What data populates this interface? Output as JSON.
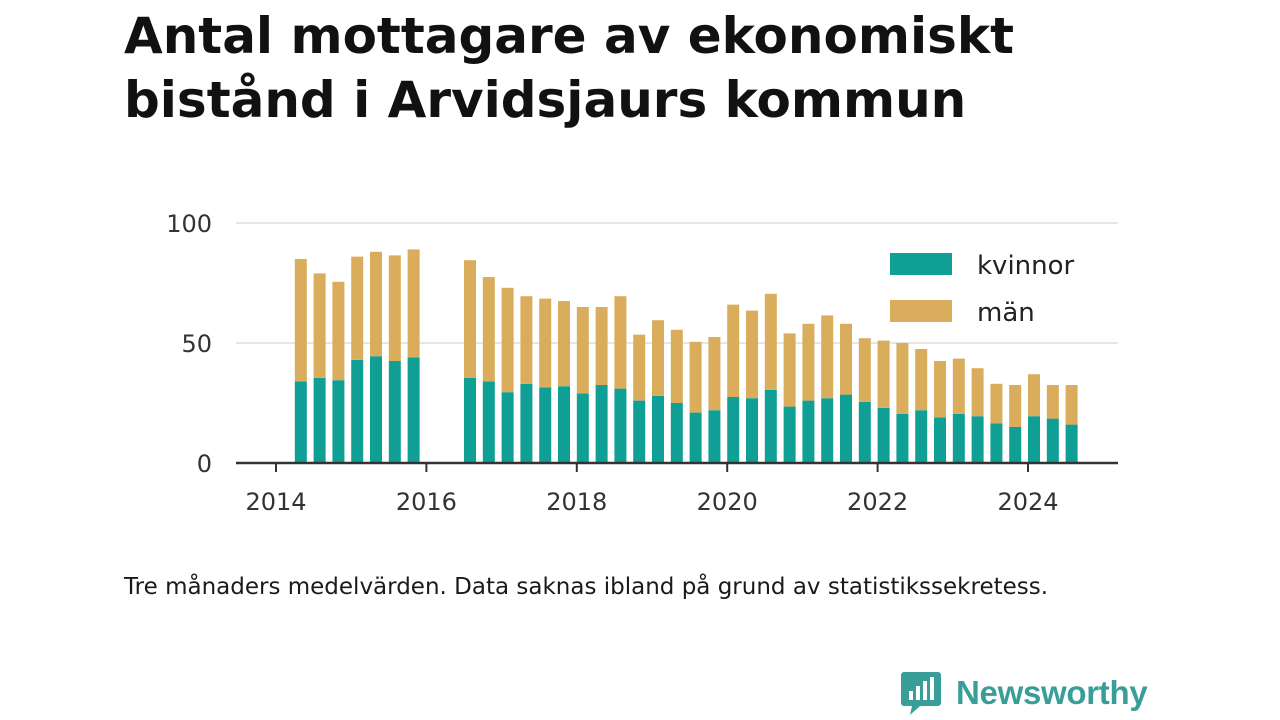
{
  "chart_data": {
    "type": "bar",
    "stacked": true,
    "title": "Antal mottagare av ekonomiskt bistånd i Arvidsjaurs kommun",
    "note": "Tre månaders medelvärden. Data saknas ibland på grund av statistikssekretess.",
    "x_ticks": [
      "2014",
      "2016",
      "2018",
      "2020",
      "2022",
      "2024"
    ],
    "y_ticks": [
      "0",
      "50",
      "100"
    ],
    "ylim": [
      0,
      100
    ],
    "xlim": [
      2014,
      2025.2
    ],
    "grid": true,
    "legend_position": "top-right",
    "colors": {
      "kvinnor": "#0f9f94",
      "män": "#d9ad5c"
    },
    "x": [
      2014.33,
      2014.58,
      2014.83,
      2015.08,
      2015.33,
      2015.58,
      2015.83,
      2016.58,
      2016.83,
      2017.08,
      2017.33,
      2017.58,
      2017.83,
      2018.08,
      2018.33,
      2018.58,
      2018.83,
      2019.08,
      2019.33,
      2019.58,
      2019.83,
      2020.08,
      2020.33,
      2020.58,
      2020.83,
      2021.08,
      2021.33,
      2021.58,
      2021.83,
      2022.08,
      2022.33,
      2022.58,
      2022.83,
      2023.08,
      2023.33,
      2023.58,
      2023.83,
      2024.08,
      2024.33,
      2024.58
    ],
    "series": [
      {
        "name": "kvinnor",
        "values": [
          34,
          35.5,
          34.5,
          43,
          44.5,
          42.5,
          44,
          35.5,
          34,
          29.5,
          33,
          31.5,
          32,
          29,
          32.5,
          31,
          26,
          28,
          25,
          21,
          22,
          27.5,
          27,
          30.5,
          23.5,
          26,
          27,
          28.5,
          25.5,
          23,
          20.5,
          22,
          19,
          20.5,
          19.5,
          16.5,
          15,
          19.5,
          18.5,
          16
        ]
      },
      {
        "name": "män",
        "values": [
          51,
          43.5,
          41,
          43,
          43.5,
          44,
          45,
          49,
          43.5,
          43.5,
          36.5,
          37,
          35.5,
          36,
          32.5,
          38.5,
          27.5,
          31.5,
          30.5,
          29.5,
          30.5,
          38.5,
          36.5,
          40,
          30.5,
          32,
          34.5,
          29.5,
          26.5,
          28,
          29.5,
          25.5,
          23.5,
          23,
          20,
          16.5,
          17.5,
          17.5,
          14,
          16.5
        ]
      }
    ]
  },
  "brand": {
    "name": "Newsworthy"
  }
}
